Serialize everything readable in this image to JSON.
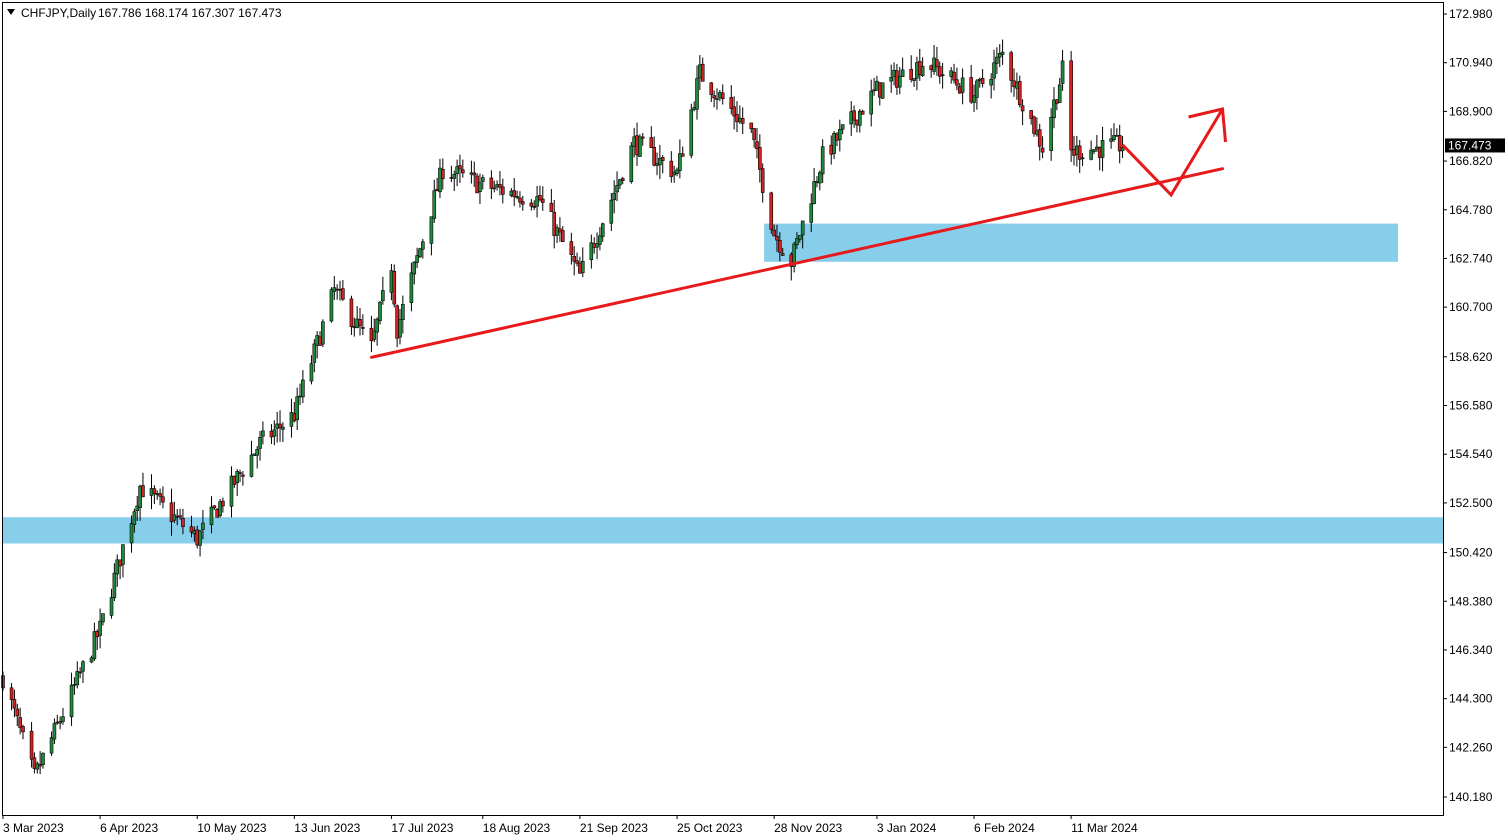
{
  "header": {
    "symbol": "CHFJPY,Daily",
    "ohlc": "167.786 168.174 167.307 167.473",
    "dropdown_icon": "triangle-down-icon"
  },
  "chart_data": {
    "type": "candlestick",
    "symbol": "CHFJPY",
    "timeframe": "Daily",
    "y_ticks": [
      "172.980",
      "170.940",
      "168.900",
      "166.820",
      "164.780",
      "162.740",
      "160.700",
      "158.620",
      "156.580",
      "154.540",
      "152.500",
      "150.420",
      "148.380",
      "146.340",
      "144.300",
      "142.260",
      "140.180"
    ],
    "ylim": [
      139.9,
      173.5
    ],
    "x_ticks": [
      "3 Mar 2023",
      "6 Apr 2023",
      "10 May 2023",
      "13 Jun 2023",
      "17 Jul 2023",
      "18 Aug 2023",
      "21 Sep 2023",
      "25 Oct 2023",
      "28 Nov 2023",
      "3 Jan 2024",
      "6 Feb 2024",
      "11 Mar 2024"
    ],
    "current_price": "167.473",
    "colors": {
      "bull": "#1e8a3c",
      "bear": "#d42020",
      "wick": "#000000",
      "zone": "#87ceeb",
      "annotation": "#e8191c",
      "price_tag": "#000000"
    },
    "key_points": [
      {
        "date": "3 Mar 2023",
        "close": 145.2
      },
      {
        "date": "14 Mar 2023",
        "close": 141.0
      },
      {
        "date": "6 Apr 2023",
        "close": 147.2
      },
      {
        "date": "20 Apr 2023",
        "close": 153.2
      },
      {
        "date": "10 May 2023",
        "close": 151.0
      },
      {
        "date": "1 Jun 2023",
        "close": 155.0
      },
      {
        "date": "13 Jun 2023",
        "close": 156.2
      },
      {
        "date": "27 Jun 2023",
        "close": 161.4
      },
      {
        "date": "10 Jul 2023",
        "close": 159.0
      },
      {
        "date": "17 Jul 2023",
        "close": 162.5
      },
      {
        "date": "19 Jul 2023",
        "close": 159.8
      },
      {
        "date": "4 Aug 2023",
        "close": 166.5
      },
      {
        "date": "18 Aug 2023",
        "close": 165.8
      },
      {
        "date": "7 Sep 2023",
        "close": 165.2
      },
      {
        "date": "21 Sep 2023",
        "close": 162.0
      },
      {
        "date": "10 Oct 2023",
        "close": 167.6
      },
      {
        "date": "25 Oct 2023",
        "close": 166.3
      },
      {
        "date": "2 Nov 2023",
        "close": 170.5
      },
      {
        "date": "20 Nov 2023",
        "close": 168.0
      },
      {
        "date": "28 Nov 2023",
        "close": 163.8
      },
      {
        "date": "4 Dec 2023",
        "close": 162.6
      },
      {
        "date": "15 Dec 2023",
        "close": 167.0
      },
      {
        "date": "3 Jan 2024",
        "close": 169.8
      },
      {
        "date": "20 Jan 2024",
        "close": 171.0
      },
      {
        "date": "6 Feb 2024",
        "close": 169.6
      },
      {
        "date": "16 Feb 2024",
        "close": 171.3
      },
      {
        "date": "1 Mar 2024",
        "close": 167.4
      },
      {
        "date": "8 Mar 2024",
        "close": 170.6
      },
      {
        "date": "11 Mar 2024",
        "close": 167.2
      },
      {
        "date": "29 Mar 2024",
        "close": 167.5
      }
    ],
    "zones": [
      {
        "label": "support-zone-upper",
        "from": 162.6,
        "to": 164.2,
        "start_date": "28 Nov 2023"
      },
      {
        "label": "support-zone-lower",
        "from": 150.8,
        "to": 151.9,
        "start_date": "3 Mar 2023"
      }
    ],
    "trendline": {
      "from": {
        "date": "10 Jul 2023",
        "price": 158.6
      },
      "to": {
        "date": "3 May 2024",
        "price": 166.5
      }
    },
    "projection": [
      {
        "date": "29 Mar 2024",
        "price": 167.5
      },
      {
        "date": "15 Apr 2024",
        "price": 165.4
      },
      {
        "date": "3 May 2024",
        "price": 169.0
      }
    ]
  }
}
